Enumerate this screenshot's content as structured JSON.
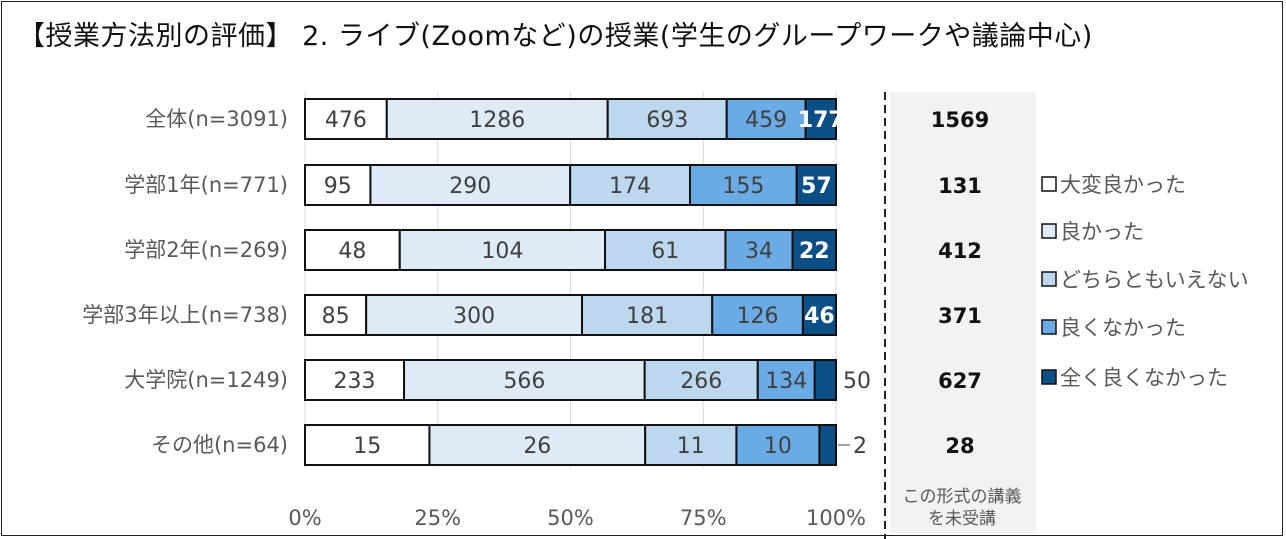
{
  "chart_data": {
    "type": "bar",
    "orientation": "horizontal",
    "stacked": "percent",
    "title": "【授業方法別の評価】 2. ライブ(Zoomなど)の授業(学生のグループワークや議論中心)",
    "categories": [
      "全体(n=3091)",
      "学部1年(n=771)",
      "学部2年(n=269)",
      "学部3年以上(n=738)",
      "大学院(n=1249)",
      "その他(n=64)"
    ],
    "series": [
      {
        "name": "大変良かった",
        "color": "#ffffff",
        "values": [
          476,
          95,
          48,
          85,
          233,
          15
        ]
      },
      {
        "name": "良かった",
        "color": "#deebf7",
        "values": [
          1286,
          290,
          104,
          300,
          566,
          26
        ]
      },
      {
        "name": "どちらともいえない",
        "color": "#bdd7ee",
        "values": [
          693,
          174,
          61,
          181,
          266,
          11
        ]
      },
      {
        "name": "良くなかった",
        "color": "#6aabe6",
        "values": [
          459,
          155,
          34,
          126,
          134,
          10
        ]
      },
      {
        "name": "全く良くなかった",
        "color": "#0b4f86",
        "values": [
          177,
          57,
          22,
          46,
          50,
          2
        ]
      }
    ],
    "xticks": [
      "0%",
      "25%",
      "50%",
      "75%",
      "100%"
    ],
    "xlim": [
      0,
      100
    ],
    "grid": true,
    "legend": "right",
    "not_taken": {
      "label": "この形式の講義を未受講",
      "label_lines": [
        "この形式の講義",
        "を未受講"
      ],
      "values": [
        1569,
        131,
        412,
        371,
        627,
        28
      ]
    }
  }
}
